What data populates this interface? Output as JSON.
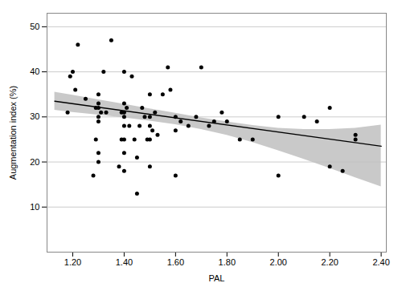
{
  "chart_data": {
    "type": "scatter",
    "xlabel": "PAL",
    "ylabel": "Augmentation index (%)",
    "xlim": [
      1.1,
      2.42
    ],
    "ylim": [
      0,
      53
    ],
    "xticks": [
      {
        "value": 1.2,
        "label": "1.20"
      },
      {
        "value": 1.4,
        "label": "1.40"
      },
      {
        "value": 1.6,
        "label": "1.60"
      },
      {
        "value": 1.8,
        "label": "1.80"
      },
      {
        "value": 2.0,
        "label": "2.00"
      },
      {
        "value": 2.2,
        "label": "2.20"
      },
      {
        "value": 2.4,
        "label": "2.40"
      }
    ],
    "yticks": [
      10,
      20,
      30,
      40,
      50
    ],
    "grid": "y",
    "series": [
      {
        "type": "area",
        "color": "#c0c0c0",
        "x": [
          1.13,
          1.2,
          1.3,
          1.4,
          1.5,
          1.6,
          1.7,
          1.8,
          1.9,
          2.0,
          2.1,
          2.2,
          2.3,
          2.4
        ],
        "upper": [
          35.5,
          34.8,
          33.8,
          32.8,
          31.8,
          30.8,
          29.8,
          28.9,
          28.1,
          27.5,
          27.2,
          27.2,
          27.5,
          28.2
        ],
        "lower": [
          31.5,
          31.0,
          30.4,
          29.8,
          29.1,
          28.3,
          27.2,
          25.9,
          24.3,
          22.5,
          20.6,
          18.6,
          16.5,
          14.5
        ]
      },
      {
        "type": "line",
        "color": "#000000",
        "x": [
          1.13,
          2.4
        ],
        "values": [
          33.5,
          23.5
        ]
      },
      {
        "type": "scatter",
        "color": "#000000",
        "x": [
          1.18,
          1.19,
          1.2,
          1.21,
          1.22,
          1.25,
          1.28,
          1.29,
          1.29,
          1.3,
          1.3,
          1.3,
          1.3,
          1.3,
          1.3,
          1.3,
          1.31,
          1.32,
          1.33,
          1.35,
          1.38,
          1.39,
          1.39,
          1.4,
          1.4,
          1.4,
          1.4,
          1.4,
          1.4,
          1.4,
          1.4,
          1.41,
          1.42,
          1.43,
          1.44,
          1.45,
          1.45,
          1.46,
          1.47,
          1.48,
          1.49,
          1.5,
          1.5,
          1.5,
          1.5,
          1.5,
          1.51,
          1.52,
          1.53,
          1.55,
          1.57,
          1.58,
          1.6,
          1.6,
          1.6,
          1.62,
          1.65,
          1.68,
          1.7,
          1.73,
          1.75,
          1.78,
          1.8,
          1.85,
          1.9,
          2.0,
          2.0,
          2.1,
          2.15,
          2.2,
          2.2,
          2.25,
          2.3,
          2.3
        ],
        "values": [
          31,
          39,
          40,
          36,
          46,
          34,
          17,
          32,
          25,
          20,
          22,
          29,
          30,
          32,
          33,
          35,
          31,
          40,
          31,
          47,
          19,
          25,
          31,
          18,
          22,
          25,
          28,
          30,
          31,
          33,
          40,
          32,
          28,
          39,
          25,
          13,
          21,
          28,
          32,
          30,
          25,
          19,
          25,
          28,
          30,
          35,
          27,
          31,
          26,
          35,
          41,
          36,
          17,
          27,
          30,
          29,
          28,
          30,
          41,
          28,
          29,
          31,
          29,
          25,
          25,
          17,
          30,
          30,
          29,
          19,
          32,
          18,
          25,
          26
        ]
      }
    ]
  }
}
